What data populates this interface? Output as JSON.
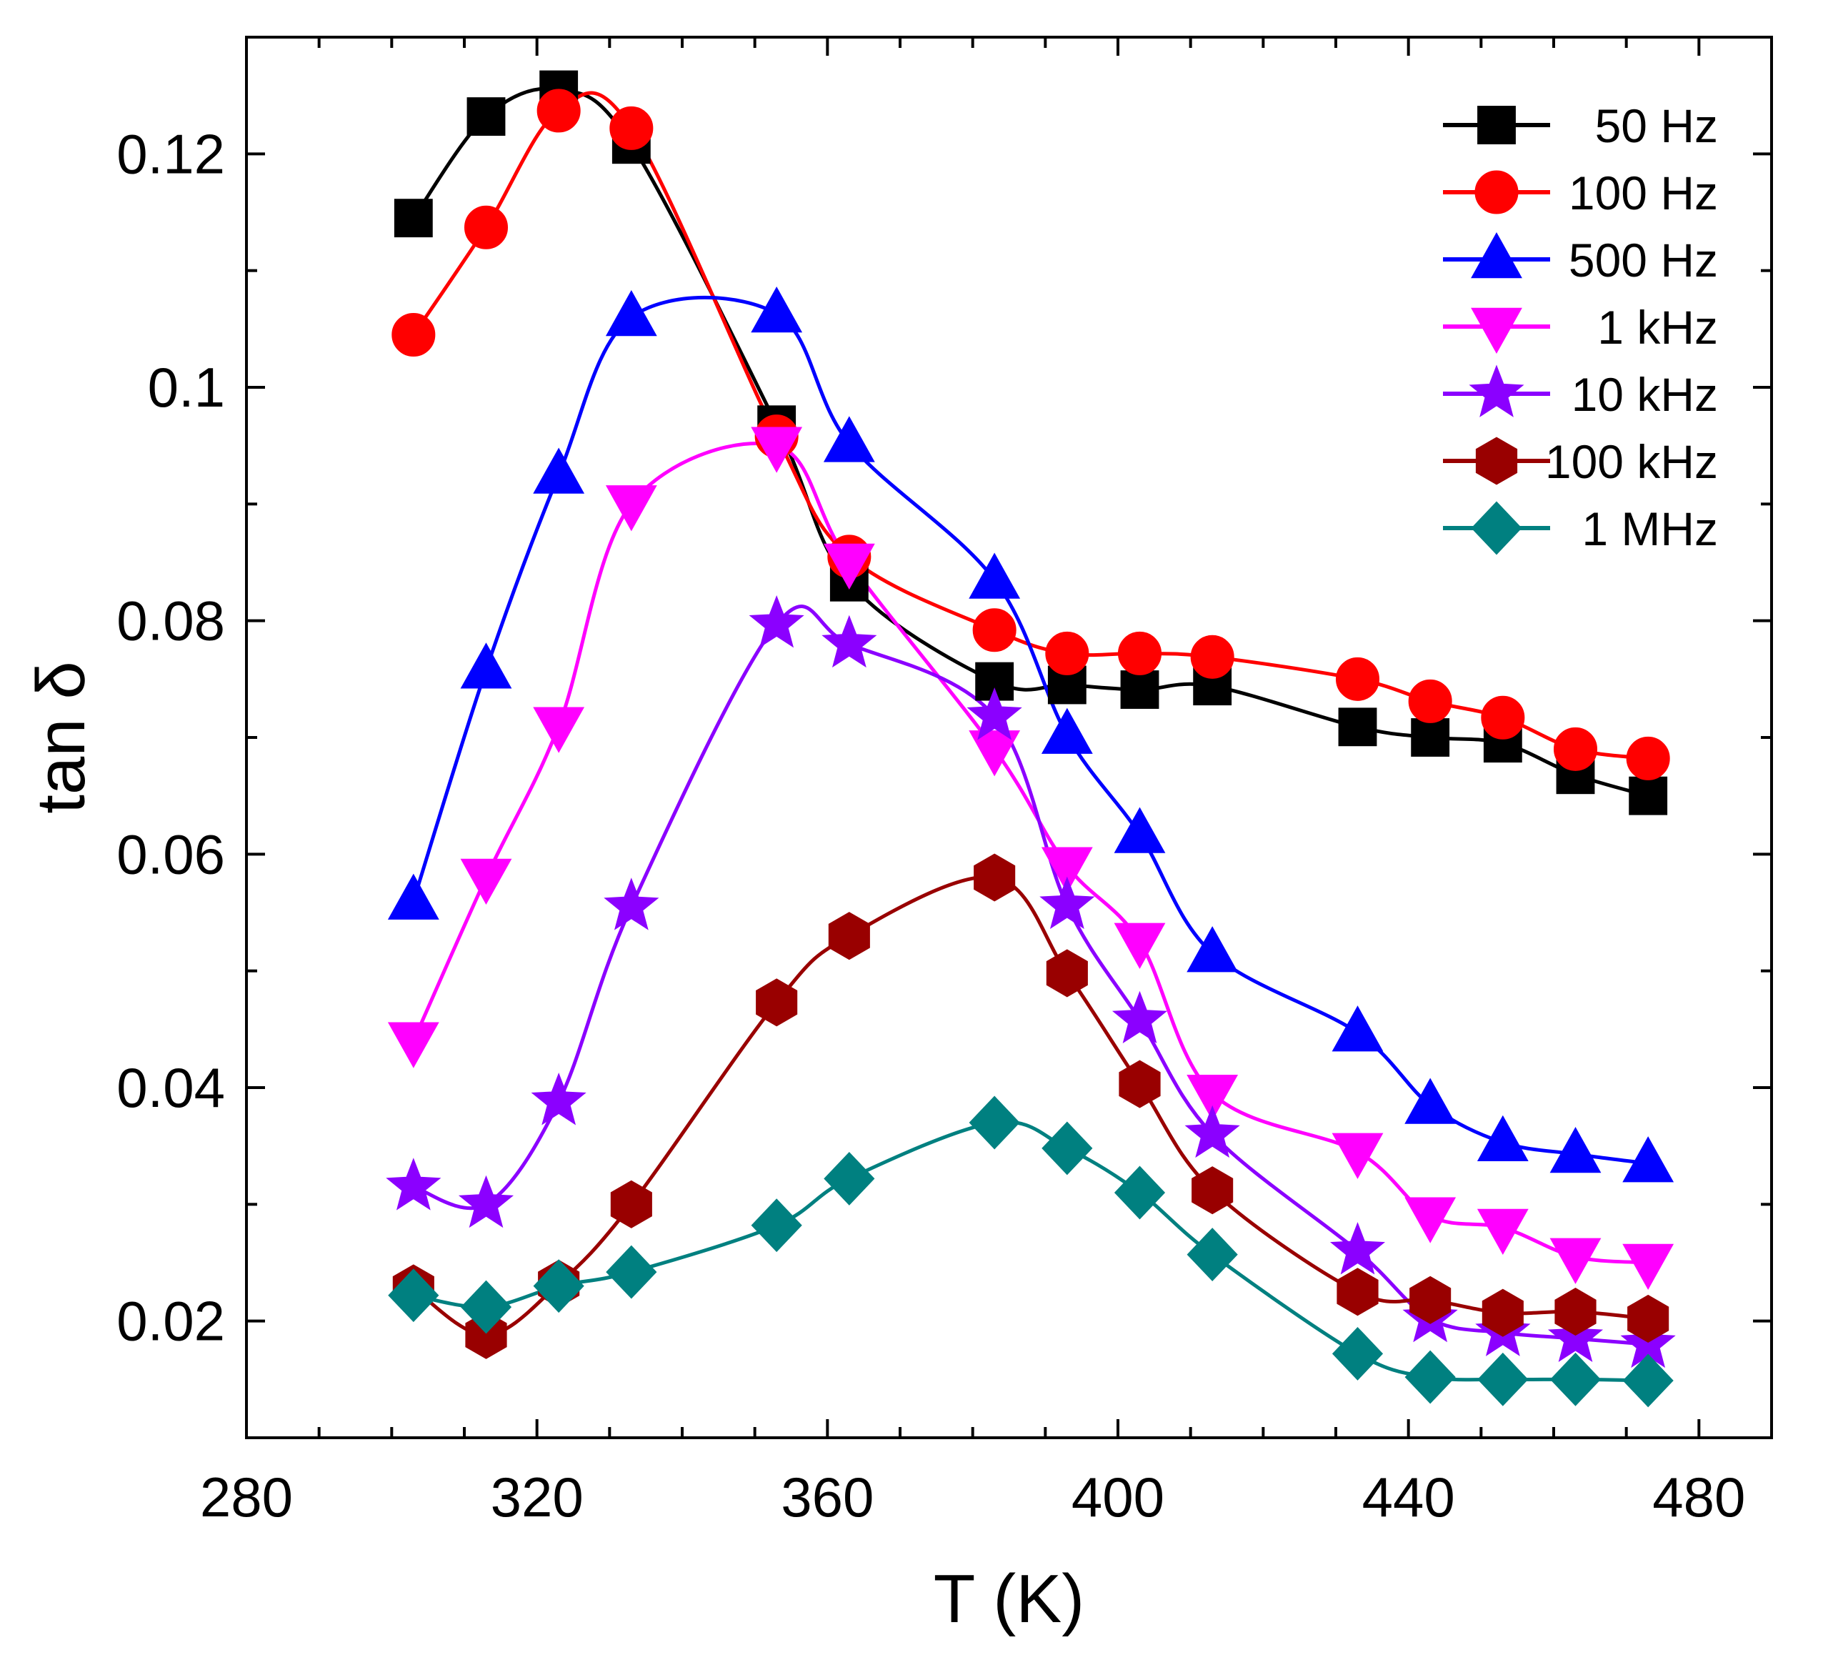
{
  "chart_data": {
    "type": "line",
    "title": "",
    "xlabel": "T (K)",
    "ylabel": "tan δ",
    "xlim": [
      280,
      490
    ],
    "ylim": [
      0.01,
      0.13
    ],
    "x_ticks": [
      280,
      320,
      360,
      400,
      440,
      480
    ],
    "x_tick_labels": [
      "280",
      "320",
      "360",
      "400",
      "440",
      "480"
    ],
    "y_ticks": [
      0.02,
      0.04,
      0.06,
      0.08,
      0.1,
      0.12
    ],
    "y_tick_labels": [
      "0.02",
      "0.04",
      "0.06",
      "0.08",
      "0.1",
      "0.12"
    ],
    "grid": false,
    "legend_position": "top-right",
    "series": [
      {
        "name": "50 Hz",
        "color": "#000000",
        "marker": "square",
        "x": [
          303,
          313,
          323,
          333,
          353,
          363,
          383,
          393,
          403,
          413,
          433,
          443,
          453,
          463,
          473
        ],
        "values": [
          0.1145,
          0.1232,
          0.1255,
          0.1208,
          0.0968,
          0.0833,
          0.0748,
          0.0745,
          0.0741,
          0.0744,
          0.0709,
          0.07,
          0.0695,
          0.0668,
          0.065
        ]
      },
      {
        "name": "100 Hz",
        "color": "#ff0000",
        "marker": "circle",
        "x": [
          303,
          313,
          323,
          333,
          353,
          363,
          383,
          393,
          403,
          413,
          433,
          443,
          453,
          463,
          473
        ],
        "values": [
          0.1045,
          0.1137,
          0.1237,
          0.1222,
          0.0958,
          0.0855,
          0.0792,
          0.0772,
          0.0772,
          0.0769,
          0.075,
          0.0731,
          0.0717,
          0.069,
          0.0682
        ]
      },
      {
        "name": "500 Hz",
        "color": "#0000ff",
        "marker": "triangle-up",
        "x": [
          303,
          313,
          323,
          333,
          353,
          363,
          383,
          393,
          403,
          413,
          433,
          443,
          453,
          463,
          473
        ],
        "values": [
          0.056,
          0.0758,
          0.0925,
          0.106,
          0.1063,
          0.0952,
          0.0835,
          0.0702,
          0.0617,
          0.0515,
          0.0447,
          0.0385,
          0.0353,
          0.0343,
          0.0335
        ]
      },
      {
        "name": "1 kHz",
        "color": "#ff00ff",
        "marker": "triangle-down",
        "x": [
          303,
          313,
          323,
          333,
          353,
          363,
          383,
          393,
          403,
          413,
          433,
          443,
          453,
          463,
          473
        ],
        "values": [
          0.044,
          0.058,
          0.071,
          0.09,
          0.095,
          0.085,
          0.069,
          0.059,
          0.0525,
          0.0395,
          0.0345,
          0.029,
          0.028,
          0.0255,
          0.025
        ]
      },
      {
        "name": "10 kHz",
        "color": "#8b00ff",
        "marker": "star",
        "x": [
          303,
          313,
          323,
          333,
          353,
          363,
          383,
          393,
          403,
          413,
          433,
          443,
          453,
          463,
          473
        ],
        "values": [
          0.0315,
          0.03,
          0.0388,
          0.0555,
          0.0797,
          0.078,
          0.0718,
          0.0556,
          0.0458,
          0.036,
          0.026,
          0.0202,
          0.019,
          0.0185,
          0.018
        ]
      },
      {
        "name": "100 kHz",
        "color": "#990000",
        "marker": "hexagon",
        "x": [
          303,
          313,
          323,
          333,
          353,
          363,
          383,
          393,
          403,
          413,
          433,
          443,
          453,
          463,
          473
        ],
        "values": [
          0.0228,
          0.0188,
          0.0232,
          0.03,
          0.0473,
          0.053,
          0.058,
          0.0498,
          0.0403,
          0.0312,
          0.0225,
          0.0218,
          0.0207,
          0.0208,
          0.0202
        ]
      },
      {
        "name": "1 MHz",
        "color": "#008080",
        "marker": "diamond",
        "x": [
          303,
          313,
          323,
          333,
          353,
          363,
          383,
          393,
          403,
          413,
          433,
          443,
          453,
          463,
          473
        ],
        "values": [
          0.0222,
          0.0212,
          0.023,
          0.0242,
          0.0282,
          0.0322,
          0.037,
          0.0348,
          0.031,
          0.0257,
          0.0172,
          0.0152,
          0.015,
          0.015,
          0.0149
        ]
      }
    ]
  }
}
